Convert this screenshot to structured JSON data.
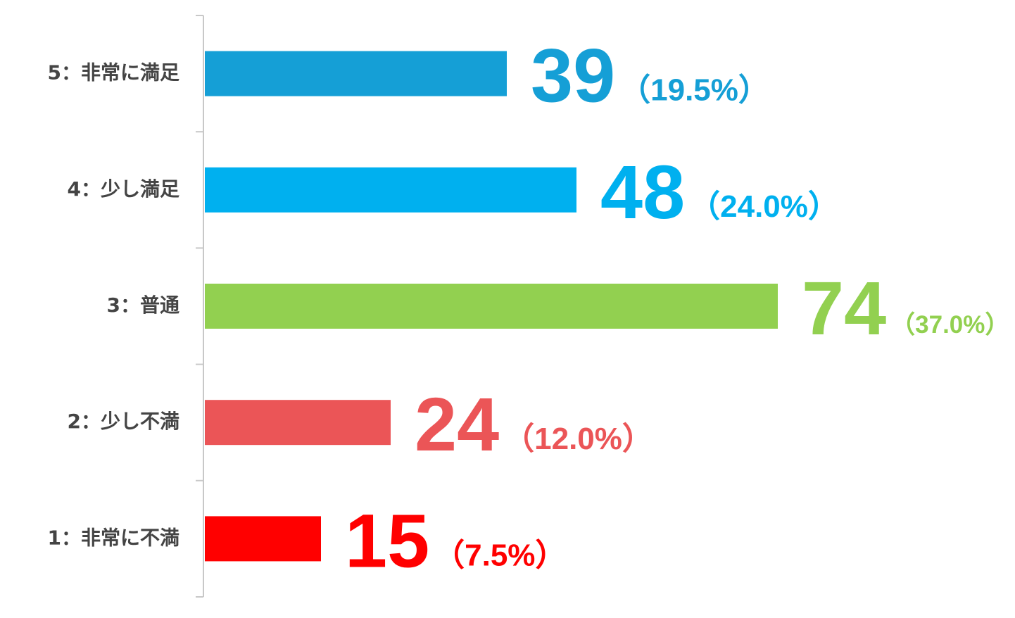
{
  "chart_data": {
    "type": "hbar",
    "categories": [
      "5：非常に満足",
      "4：少し満足",
      "3：普通",
      "2：少し不満",
      "1：非常に不満"
    ],
    "values": [
      39,
      48,
      74,
      24,
      15
    ],
    "share_labels": [
      "（19.5%）",
      "（24.0%）",
      "（37.0%）",
      "（12.0%）",
      "（7.5%）"
    ],
    "colors": [
      "#159fd6",
      "#00b0ef",
      "#92d050",
      "#eb5557",
      "#ff0000"
    ],
    "xlim": [
      0,
      100
    ]
  }
}
